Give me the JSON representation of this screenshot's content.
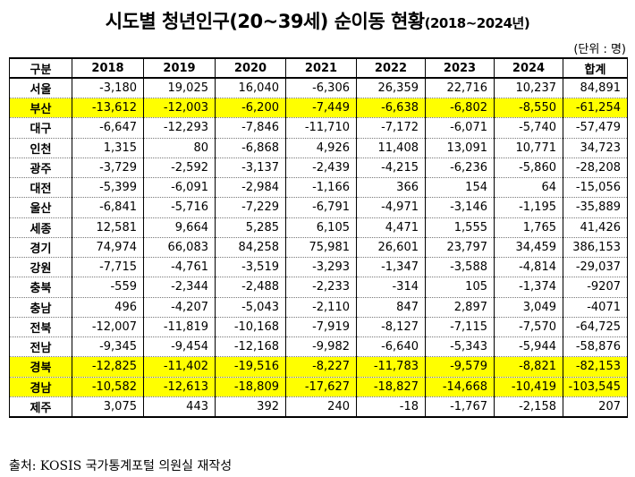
{
  "title": "시도별 청년인구(20~39세) 순이동 현황",
  "title_sub": "(2018~2024년)",
  "unit": "(단위 : 명)",
  "highlight_color": "#ffff00",
  "table": {
    "headers": [
      "구분",
      "2018",
      "2019",
      "2020",
      "2021",
      "2022",
      "2023",
      "2024",
      "합계"
    ],
    "rows": [
      {
        "region": "서울",
        "highlight": false,
        "values": [
          "-3,180",
          "19,025",
          "16,040",
          "-6,306",
          "26,359",
          "22,716",
          "10,237",
          "84,891"
        ]
      },
      {
        "region": "부산",
        "highlight": true,
        "values": [
          "-13,612",
          "-12,003",
          "-6,200",
          "-7,449",
          "-6,638",
          "-6,802",
          "-8,550",
          "-61,254"
        ]
      },
      {
        "region": "대구",
        "highlight": false,
        "values": [
          "-6,647",
          "-12,293",
          "-7,846",
          "-11,710",
          "-7,172",
          "-6,071",
          "-5,740",
          "-57,479"
        ]
      },
      {
        "region": "인천",
        "highlight": false,
        "values": [
          "1,315",
          "80",
          "-6,868",
          "4,926",
          "11,408",
          "13,091",
          "10,771",
          "34,723"
        ]
      },
      {
        "region": "광주",
        "highlight": false,
        "values": [
          "-3,729",
          "-2,592",
          "-3,137",
          "-2,439",
          "-4,215",
          "-6,236",
          "-5,860",
          "-28,208"
        ]
      },
      {
        "region": "대전",
        "highlight": false,
        "values": [
          "-5,399",
          "-6,091",
          "-2,984",
          "-1,166",
          "366",
          "154",
          "64",
          "-15,056"
        ]
      },
      {
        "region": "울산",
        "highlight": false,
        "values": [
          "-6,841",
          "-5,716",
          "-7,229",
          "-6,791",
          "-4,971",
          "-3,146",
          "-1,195",
          "-35,889"
        ]
      },
      {
        "region": "세종",
        "highlight": false,
        "values": [
          "12,581",
          "9,664",
          "5,285",
          "6,105",
          "4,471",
          "1,555",
          "1,765",
          "41,426"
        ]
      },
      {
        "region": "경기",
        "highlight": false,
        "values": [
          "74,974",
          "66,083",
          "84,258",
          "75,981",
          "26,601",
          "23,797",
          "34,459",
          "386,153"
        ]
      },
      {
        "region": "강원",
        "highlight": false,
        "values": [
          "-7,715",
          "-4,761",
          "-3,519",
          "-3,293",
          "-1,347",
          "-3,588",
          "-4,814",
          "-29,037"
        ]
      },
      {
        "region": "충북",
        "highlight": false,
        "values": [
          "-559",
          "-2,344",
          "-2,488",
          "-2,233",
          "-314",
          "105",
          "-1,374",
          "-9207"
        ]
      },
      {
        "region": "충남",
        "highlight": false,
        "values": [
          "496",
          "-4,207",
          "-5,043",
          "-2,110",
          "847",
          "2,897",
          "3,049",
          "-4071"
        ]
      },
      {
        "region": "전북",
        "highlight": false,
        "values": [
          "-12,007",
          "-11,819",
          "-10,168",
          "-7,919",
          "-8,127",
          "-7,115",
          "-7,570",
          "-64,725"
        ]
      },
      {
        "region": "전남",
        "highlight": false,
        "values": [
          "-9,345",
          "-9,454",
          "-12,168",
          "-9,982",
          "-6,640",
          "-5,343",
          "-5,944",
          "-58,876"
        ]
      },
      {
        "region": "경북",
        "highlight": true,
        "values": [
          "-12,825",
          "-11,402",
          "-19,516",
          "-8,227",
          "-11,783",
          "-9,579",
          "-8,821",
          "-82,153"
        ]
      },
      {
        "region": "경남",
        "highlight": true,
        "values": [
          "-10,582",
          "-12,613",
          "-18,809",
          "-17,627",
          "-18,827",
          "-14,668",
          "-10,419",
          "-103,545"
        ]
      },
      {
        "region": "제주",
        "highlight": false,
        "values": [
          "3,075",
          "443",
          "392",
          "240",
          "-18",
          "-1,767",
          "-2,158",
          "207"
        ]
      }
    ]
  },
  "source": "출처: KOSIS 국가통계포털 의원실 재작성"
}
